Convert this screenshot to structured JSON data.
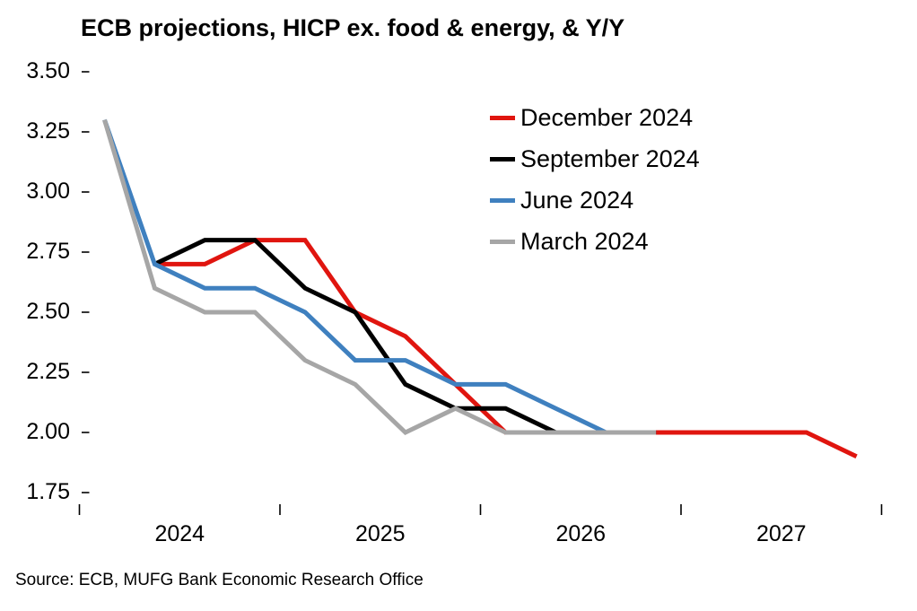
{
  "title": "ECB projections, HICP ex. food & energy, & Y/Y",
  "source_note": "Source: ECB, MUFG Bank Economic Research Office",
  "chart_data": {
    "type": "line",
    "title": "ECB projections, HICP ex. food & energy, & Y/Y",
    "xlabel": "",
    "ylabel": "",
    "unit": "% year-on-year",
    "grid": false,
    "legend_position": "upper-right-inside",
    "ylim": [
      1.75,
      3.5
    ],
    "y_ticks": [
      "3.50",
      "3.25",
      "3.00",
      "2.75",
      "2.50",
      "2.25",
      "2.00",
      "1.75"
    ],
    "x_labels": [
      "2024",
      "2025",
      "2026",
      "2027"
    ],
    "x_tick_boundary_years": [
      2024,
      2025,
      2026,
      2027,
      2028
    ],
    "quarters": [
      "2024Q1",
      "2024Q2",
      "2024Q3",
      "2024Q4",
      "2025Q1",
      "2025Q2",
      "2025Q3",
      "2025Q4",
      "2026Q1",
      "2026Q2",
      "2026Q3",
      "2026Q4",
      "2027Q1",
      "2027Q2",
      "2027Q3",
      "2027Q4"
    ],
    "series": [
      {
        "name": "December 2024",
        "color": "#e0150f",
        "start_quarter": "2024Q2",
        "values": [
          2.7,
          2.7,
          2.8,
          2.8,
          2.5,
          2.4,
          2.2,
          2.0,
          2.0,
          2.0,
          2.0,
          2.0,
          2.0,
          2.0,
          1.9
        ]
      },
      {
        "name": "September 2024",
        "color": "#000000",
        "start_quarter": "2024Q2",
        "values": [
          2.7,
          2.8,
          2.8,
          2.6,
          2.5,
          2.2,
          2.1,
          2.1,
          2.0,
          2.0,
          2.0
        ]
      },
      {
        "name": "June 2024",
        "color": "#3f80bf",
        "start_quarter": "2024Q1",
        "values": [
          3.3,
          2.7,
          2.6,
          2.6,
          2.5,
          2.3,
          2.3,
          2.2,
          2.2,
          2.1,
          2.0,
          2.0
        ]
      },
      {
        "name": "March 2024",
        "color": "#a6a6a6",
        "start_quarter": "2024Q1",
        "values": [
          3.3,
          2.6,
          2.5,
          2.5,
          2.3,
          2.2,
          2.0,
          2.1,
          2.0,
          2.0,
          2.0,
          2.0
        ]
      }
    ]
  }
}
